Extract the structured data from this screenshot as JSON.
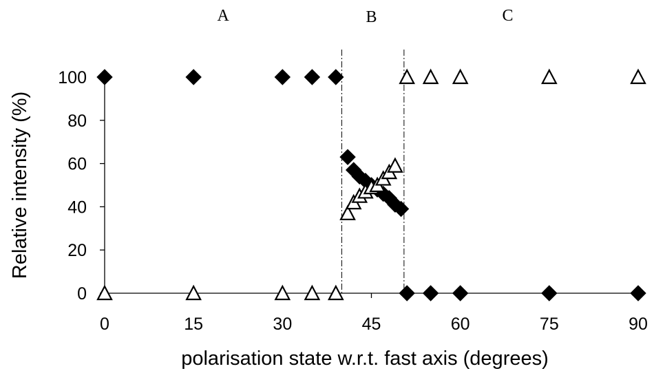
{
  "chart_data": {
    "type": "scatter",
    "title": "",
    "xlabel": "polarisation state w.r.t. fast axis (degrees)",
    "ylabel": "Relative intensity (%)",
    "xlim": [
      0,
      90
    ],
    "ylim": [
      0,
      100
    ],
    "x_ticks": [
      0,
      15,
      30,
      45,
      60,
      75,
      90
    ],
    "y_ticks": [
      0,
      20,
      40,
      60,
      80,
      100
    ],
    "grid": false,
    "legend": "none",
    "regions": [
      {
        "label": "A",
        "x_center": 20
      },
      {
        "label": "B",
        "x_center": 45
      },
      {
        "label": "C",
        "x_center": 68
      }
    ],
    "boundaries": [
      40,
      50.5
    ],
    "series": [
      {
        "marker": "filled-diamond",
        "color": "#000000",
        "points": [
          [
            0,
            100
          ],
          [
            15,
            100
          ],
          [
            30,
            100
          ],
          [
            35,
            100
          ],
          [
            39,
            100
          ],
          [
            41,
            63
          ],
          [
            42,
            57
          ],
          [
            43,
            54
          ],
          [
            44,
            52
          ],
          [
            45,
            50
          ],
          [
            46,
            48
          ],
          [
            47,
            46
          ],
          [
            48,
            44
          ],
          [
            49,
            41
          ],
          [
            50,
            39
          ],
          [
            51,
            0
          ],
          [
            55,
            0
          ],
          [
            60,
            0
          ],
          [
            75,
            0
          ],
          [
            90,
            0
          ]
        ]
      },
      {
        "marker": "open-triangle",
        "color": "#000000",
        "points": [
          [
            0,
            0
          ],
          [
            15,
            0
          ],
          [
            30,
            0
          ],
          [
            35,
            0
          ],
          [
            39,
            0
          ],
          [
            41,
            37
          ],
          [
            42,
            42
          ],
          [
            43,
            45
          ],
          [
            44,
            47
          ],
          [
            45,
            49
          ],
          [
            46,
            50
          ],
          [
            47,
            53
          ],
          [
            48,
            56
          ],
          [
            49,
            59
          ],
          [
            51,
            100
          ],
          [
            55,
            100
          ],
          [
            60,
            100
          ],
          [
            75,
            100
          ],
          [
            90,
            100
          ]
        ]
      }
    ]
  }
}
